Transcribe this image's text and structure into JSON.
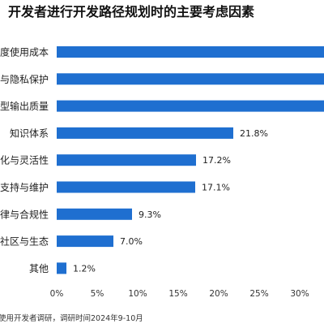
{
  "chart_data": {
    "type": "bar",
    "orientation": "horizontal",
    "title": "开发者进行开发路径规划时的主要考虑因素",
    "categories": [
      "度使用成本",
      "与隐私保护",
      "型输出质量",
      "知识体系",
      "化与灵活性",
      "支持与维护",
      "律与合规性",
      "社区与生态",
      "其他"
    ],
    "values": [
      null,
      null,
      null,
      21.8,
      17.2,
      17.1,
      9.3,
      7.0,
      1.2
    ],
    "data_labels": [
      "",
      "",
      "",
      "21.8%",
      "17.2%",
      "17.1%",
      "9.3%",
      "7.0%",
      "1.2%"
    ],
    "x_ticks": [
      "0%",
      "5%",
      "10%",
      "15%",
      "20%",
      "25%",
      "30%"
    ],
    "xlim": [
      0,
      33
    ],
    "grid": false,
    "bar_color": "#1f6fd0",
    "source": "使用开发者调研，调研时间2024年9-10月"
  }
}
